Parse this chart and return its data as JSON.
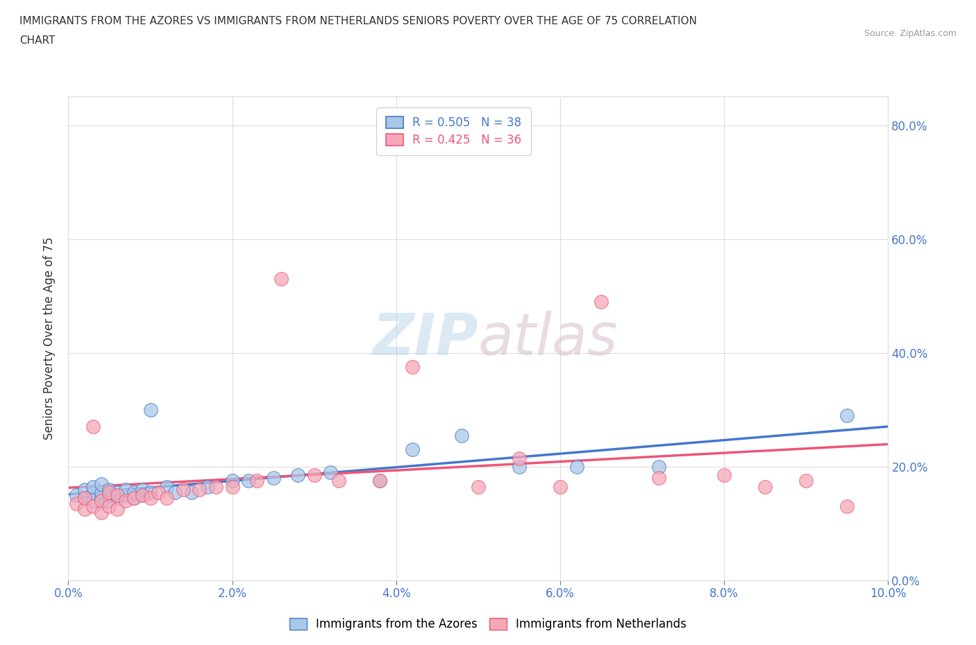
{
  "title_line1": "IMMIGRANTS FROM THE AZORES VS IMMIGRANTS FROM NETHERLANDS SENIORS POVERTY OVER THE AGE OF 75 CORRELATION",
  "title_line2": "CHART",
  "source": "Source: ZipAtlas.com",
  "ylabel": "Seniors Poverty Over the Age of 75",
  "xlim": [
    0.0,
    0.1
  ],
  "ylim": [
    0.0,
    0.85
  ],
  "xticks": [
    0.0,
    0.02,
    0.04,
    0.06,
    0.08,
    0.1
  ],
  "yticks": [
    0.0,
    0.2,
    0.4,
    0.6,
    0.8
  ],
  "xticklabels": [
    "0.0%",
    "2.0%",
    "4.0%",
    "6.0%",
    "8.0%",
    "10.0%"
  ],
  "yticklabels": [
    "0.0%",
    "20.0%",
    "40.0%",
    "60.0%",
    "80.0%"
  ],
  "watermark_zip": "ZIP",
  "watermark_atlas": "atlas",
  "legend_blue_label": "Immigrants from the Azores",
  "legend_pink_label": "Immigrants from Netherlands",
  "R_blue": 0.505,
  "N_blue": 38,
  "R_pink": 0.425,
  "N_pink": 36,
  "color_blue": "#a8c8e8",
  "color_pink": "#f4a8b8",
  "line_blue": "#4477cc",
  "line_pink": "#ee5577",
  "scatter_blue_x": [
    0.001,
    0.002,
    0.002,
    0.003,
    0.003,
    0.003,
    0.004,
    0.004,
    0.004,
    0.005,
    0.005,
    0.005,
    0.006,
    0.006,
    0.007,
    0.007,
    0.008,
    0.008,
    0.009,
    0.009,
    0.01,
    0.01,
    0.012,
    0.013,
    0.015,
    0.017,
    0.02,
    0.022,
    0.025,
    0.028,
    0.032,
    0.038,
    0.042,
    0.048,
    0.055,
    0.062,
    0.072,
    0.095
  ],
  "scatter_blue_y": [
    0.15,
    0.145,
    0.16,
    0.14,
    0.155,
    0.165,
    0.145,
    0.155,
    0.17,
    0.14,
    0.15,
    0.16,
    0.145,
    0.155,
    0.15,
    0.16,
    0.145,
    0.155,
    0.15,
    0.16,
    0.155,
    0.3,
    0.165,
    0.155,
    0.155,
    0.165,
    0.175,
    0.175,
    0.18,
    0.185,
    0.19,
    0.175,
    0.23,
    0.255,
    0.2,
    0.2,
    0.2,
    0.29
  ],
  "scatter_pink_x": [
    0.001,
    0.002,
    0.002,
    0.003,
    0.003,
    0.004,
    0.004,
    0.005,
    0.005,
    0.006,
    0.006,
    0.007,
    0.008,
    0.009,
    0.01,
    0.011,
    0.012,
    0.014,
    0.016,
    0.018,
    0.02,
    0.023,
    0.026,
    0.03,
    0.033,
    0.038,
    0.042,
    0.05,
    0.055,
    0.06,
    0.065,
    0.072,
    0.08,
    0.085,
    0.09,
    0.095
  ],
  "scatter_pink_y": [
    0.135,
    0.125,
    0.145,
    0.13,
    0.27,
    0.12,
    0.14,
    0.13,
    0.155,
    0.125,
    0.15,
    0.14,
    0.145,
    0.15,
    0.145,
    0.155,
    0.145,
    0.16,
    0.16,
    0.165,
    0.165,
    0.175,
    0.53,
    0.185,
    0.175,
    0.175,
    0.375,
    0.165,
    0.215,
    0.165,
    0.49,
    0.18,
    0.185,
    0.165,
    0.175,
    0.13
  ],
  "background_color": "#ffffff",
  "grid_color": "#dddddd",
  "tick_color": "#4477cc",
  "title_color": "#333333"
}
